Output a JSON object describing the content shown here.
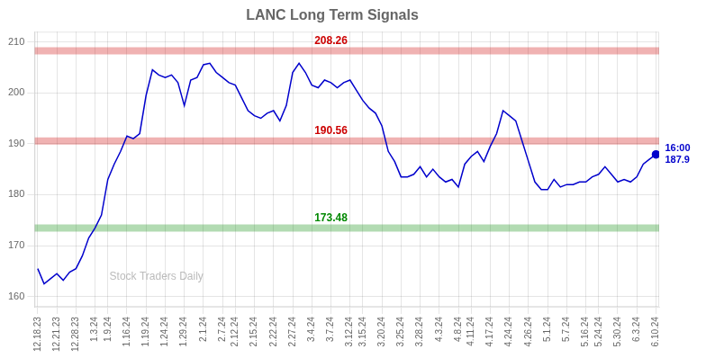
{
  "chart_data": {
    "type": "line",
    "title": "LANC Long Term Signals",
    "categories": [
      "12.18.23",
      null,
      null,
      "12.21.23",
      null,
      null,
      "12.28.23",
      null,
      null,
      "1.3.24",
      null,
      "1.9.24",
      null,
      null,
      "1.16.24",
      null,
      null,
      "1.19.24",
      null,
      null,
      "1.24.24",
      null,
      null,
      "1.29.24",
      null,
      null,
      "2.1.24",
      null,
      null,
      "2.7.24",
      null,
      "2.12.24",
      null,
      null,
      "2.15.24",
      null,
      null,
      "2.22.24",
      null,
      null,
      "2.27.24",
      null,
      null,
      "3.4.24",
      null,
      null,
      "3.7.24",
      null,
      null,
      "3.12.24",
      null,
      "3.15.24",
      null,
      null,
      "3.20.24",
      null,
      null,
      "3.25.24",
      null,
      null,
      "3.28.24",
      null,
      null,
      "4.3.24",
      null,
      null,
      "4.8.24",
      null,
      "4.11.24",
      null,
      null,
      "4.17.24",
      null,
      null,
      "4.24.24",
      null,
      null,
      "4.26.24",
      null,
      null,
      "5.1.24",
      null,
      null,
      "5.7.24",
      null,
      null,
      "5.16.24",
      null,
      "5.24.24",
      null,
      null,
      "5.30.24",
      null,
      null,
      "6.3.24",
      null,
      null,
      "6.10.24"
    ],
    "series": [
      {
        "name": "LANC",
        "color": "#0000cc",
        "values": [
          165.5,
          162.5,
          163.5,
          164.5,
          163.2,
          164.8,
          165.5,
          168.0,
          171.5,
          173.5,
          176.0,
          183.0,
          186.0,
          188.5,
          191.5,
          191.0,
          192.0,
          199.5,
          204.5,
          203.5,
          203.0,
          203.5,
          202.0,
          197.5,
          202.5,
          203.0,
          205.5,
          205.8,
          204.0,
          203.0,
          202.0,
          201.5,
          199.0,
          196.5,
          195.5,
          195.0,
          196.0,
          196.5,
          194.5,
          197.5,
          204.0,
          205.8,
          204.0,
          201.5,
          201.0,
          202.5,
          202.0,
          201.0,
          202.0,
          202.5,
          200.5,
          198.5,
          197.0,
          196.0,
          193.5,
          188.5,
          186.5,
          183.5,
          183.5,
          184.0,
          185.5,
          183.5,
          185.0,
          183.5,
          182.5,
          183.0,
          181.5,
          186.0,
          187.5,
          188.5,
          186.5,
          189.5,
          192.0,
          196.5,
          195.5,
          194.5,
          190.5,
          186.5,
          182.5,
          181.0,
          181.0,
          183.0,
          181.5,
          182.0,
          182.0,
          182.5,
          182.5,
          183.5,
          184.0,
          185.5,
          184.0,
          182.5,
          183.0,
          182.5,
          183.5,
          186.0,
          187.0,
          187.9
        ]
      }
    ],
    "reference_lines": [
      {
        "value": 208.26,
        "label": "208.26",
        "color": "#cc0000"
      },
      {
        "value": 190.56,
        "label": "190.56",
        "color": "#cc0000"
      },
      {
        "value": 173.48,
        "label": "173.48",
        "color": "#008800"
      }
    ],
    "annotations": [
      {
        "text": "16:00\n187.9"
      }
    ],
    "watermark": "Stock Traders Daily",
    "ylim": [
      158,
      212
    ],
    "yticks": [
      160,
      170,
      180,
      190,
      200,
      210
    ],
    "grid": true
  }
}
